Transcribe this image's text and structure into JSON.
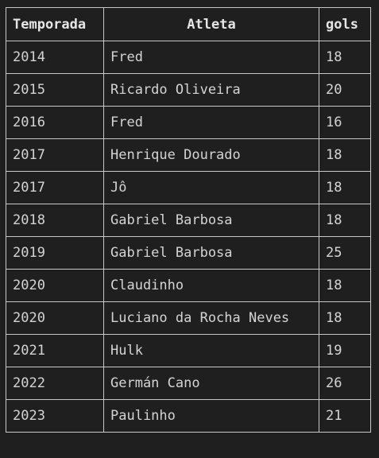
{
  "table": {
    "headers": [
      "Temporada",
      "Atleta",
      "gols"
    ],
    "rows": [
      [
        "2014",
        "Fred",
        "18"
      ],
      [
        "2015",
        "Ricardo Oliveira",
        "20"
      ],
      [
        "2016",
        "Fred",
        "16"
      ],
      [
        "2017",
        "Henrique Dourado",
        "18"
      ],
      [
        "2017",
        "Jô",
        "18"
      ],
      [
        "2018",
        "Gabriel Barbosa",
        "18"
      ],
      [
        "2019",
        "Gabriel Barbosa",
        "25"
      ],
      [
        "2020",
        "Claudinho",
        "18"
      ],
      [
        "2020",
        "Luciano da Rocha Neves",
        "18"
      ],
      [
        "2021",
        "Hulk",
        "19"
      ],
      [
        "2022",
        "Germán Cano",
        "26"
      ],
      [
        "2023",
        "Paulinho",
        "21"
      ]
    ]
  }
}
